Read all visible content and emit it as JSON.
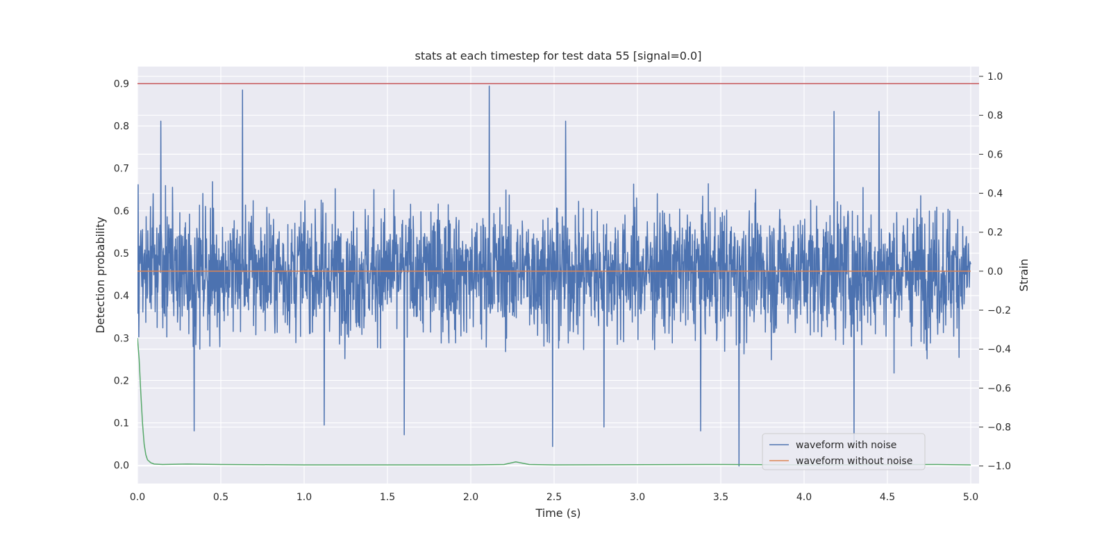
{
  "chart_data": {
    "type": "line",
    "title": "stats at each timestep for test data 55 [signal=0.0]",
    "xlabel": "Time (s)",
    "ylabel": "Detection probability",
    "y2label": "Strain",
    "xlim": [
      0.0,
      5.05
    ],
    "ylim": [
      -0.043,
      0.94
    ],
    "y2lim": [
      -1.09,
      1.05
    ],
    "x_ticks": [
      "0.0",
      "0.5",
      "1.0",
      "1.5",
      "2.0",
      "2.5",
      "3.0",
      "3.5",
      "4.0",
      "4.5",
      "5.0"
    ],
    "y_ticks": [
      "0.0",
      "0.1",
      "0.2",
      "0.3",
      "0.4",
      "0.5",
      "0.6",
      "0.7",
      "0.8",
      "0.9"
    ],
    "y2_ticks": [
      "−1.0",
      "−0.8",
      "−0.6",
      "−0.4",
      "−0.2",
      "0.0",
      "0.2",
      "0.4",
      "0.6",
      "0.8",
      "1.0"
    ],
    "grid": true,
    "legend_position": "lower-right",
    "threshold": {
      "value": 0.9,
      "axis": "left",
      "color": "#c44e52"
    },
    "series": [
      {
        "name": "waveform with noise",
        "axis": "right",
        "color": "#4c72b0",
        "x_range": [
          0.0,
          5.0
        ],
        "sample_count": 2500,
        "typical_amplitude": 0.3,
        "peaks": [
          {
            "x": 0.63,
            "y": 0.93
          },
          {
            "x": 2.11,
            "y": 0.95
          },
          {
            "x": 4.45,
            "y": 0.82
          },
          {
            "x": 4.18,
            "y": 0.82
          },
          {
            "x": 0.14,
            "y": 0.77
          },
          {
            "x": 2.57,
            "y": 0.77
          },
          {
            "x": 3.61,
            "y": -1.0
          },
          {
            "x": 4.3,
            "y": -0.88
          },
          {
            "x": 2.49,
            "y": -0.9
          },
          {
            "x": 1.12,
            "y": -0.79
          },
          {
            "x": 0.34,
            "y": -0.82
          },
          {
            "x": 1.6,
            "y": -0.84
          },
          {
            "x": 2.8,
            "y": -0.8
          },
          {
            "x": 3.38,
            "y": -0.82
          }
        ]
      },
      {
        "name": "waveform without noise",
        "axis": "right",
        "color": "#dd8452",
        "x": [
          0.0,
          5.0
        ],
        "y": [
          0.0,
          0.0
        ]
      },
      {
        "name": "",
        "axis": "left",
        "color": "#55a868",
        "x": [
          0.0,
          0.01,
          0.02,
          0.03,
          0.04,
          0.05,
          0.06,
          0.08,
          0.1,
          0.15,
          0.3,
          0.5,
          1.0,
          2.0,
          2.2,
          2.27,
          2.35,
          2.5,
          3.5,
          4.0,
          4.8,
          5.0
        ],
        "y": [
          0.3,
          0.25,
          0.17,
          0.1,
          0.05,
          0.025,
          0.013,
          0.006,
          0.003,
          0.002,
          0.003,
          0.002,
          0.001,
          0.001,
          0.002,
          0.008,
          0.002,
          0.001,
          0.002,
          0.001,
          0.002,
          0.001
        ]
      }
    ]
  }
}
